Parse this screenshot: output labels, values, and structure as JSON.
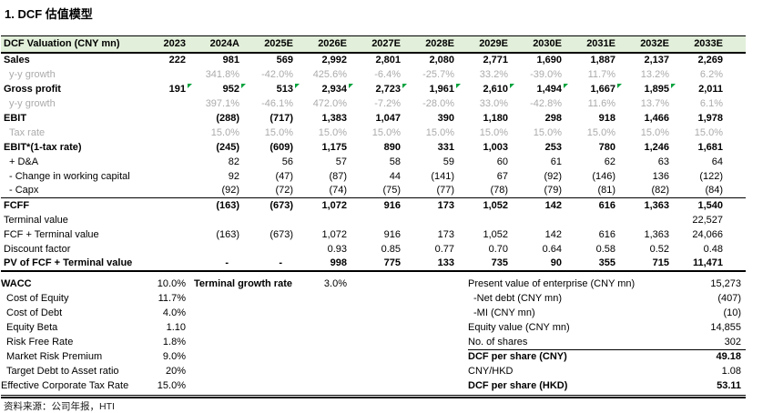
{
  "title": "1. DCF 估值模型",
  "colors": {
    "header_bg": "#E2EFDA",
    "grey_text": "#ABABAB",
    "flag_green": "#00A23C"
  },
  "table": {
    "header": [
      "DCF Valuation (CNY mn)",
      "2023",
      "2024A",
      "2025E",
      "2026E",
      "2027E",
      "2028E",
      "2029E",
      "2030E",
      "2031E",
      "2032E",
      "2033E"
    ],
    "rows": [
      {
        "label": "Sales",
        "cls": "bold",
        "values": [
          "222",
          "981",
          "569",
          "2,992",
          "2,801",
          "2,080",
          "2,771",
          "1,690",
          "1,887",
          "2,137",
          "2,269"
        ]
      },
      {
        "label": "y-y growth",
        "cls": "grey",
        "indent": true,
        "values": [
          "",
          "341.8%",
          "-42.0%",
          "425.6%",
          "-6.4%",
          "-25.7%",
          "33.2%",
          "-39.0%",
          "11.7%",
          "13.2%",
          "6.2%"
        ]
      },
      {
        "label": "Gross profit",
        "cls": "bold",
        "flags": [
          0,
          1,
          2,
          3,
          4,
          5,
          6,
          7,
          8,
          9
        ],
        "values": [
          "191",
          "952",
          "513",
          "2,934",
          "2,723",
          "1,961",
          "2,610",
          "1,494",
          "1,667",
          "1,895",
          "2,011"
        ]
      },
      {
        "label": "y-y growth",
        "cls": "grey",
        "indent": true,
        "values": [
          "",
          "397.1%",
          "-46.1%",
          "472.0%",
          "-7.2%",
          "-28.0%",
          "33.0%",
          "-42.8%",
          "11.6%",
          "13.7%",
          "6.1%"
        ]
      },
      {
        "label": "EBIT",
        "cls": "bold",
        "values": [
          "",
          "(288)",
          "(717)",
          "1,383",
          "1,047",
          "390",
          "1,180",
          "298",
          "918",
          "1,466",
          "1,978"
        ]
      },
      {
        "label": "Tax rate",
        "cls": "grey",
        "indent": true,
        "values": [
          "",
          "15.0%",
          "15.0%",
          "15.0%",
          "15.0%",
          "15.0%",
          "15.0%",
          "15.0%",
          "15.0%",
          "15.0%",
          "15.0%"
        ]
      },
      {
        "label": "EBIT*(1-tax rate)",
        "cls": "bold",
        "values": [
          "",
          "(245)",
          "(609)",
          "1,175",
          "890",
          "331",
          "1,003",
          "253",
          "780",
          "1,246",
          "1,681"
        ]
      },
      {
        "label": "+ D&A",
        "indent": true,
        "values": [
          "",
          "82",
          "56",
          "57",
          "58",
          "59",
          "60",
          "61",
          "62",
          "63",
          "64"
        ]
      },
      {
        "label": "- Change in working capital",
        "indent": true,
        "values": [
          "",
          "92",
          "(47)",
          "(87)",
          "44",
          "(141)",
          "67",
          "(92)",
          "(146)",
          "136",
          "(122)"
        ]
      },
      {
        "label": "- Capx",
        "cls": "rule",
        "indent": true,
        "values": [
          "",
          "(92)",
          "(72)",
          "(74)",
          "(75)",
          "(77)",
          "(78)",
          "(79)",
          "(81)",
          "(82)",
          "(84)"
        ]
      },
      {
        "label": "FCFF",
        "cls": "bold",
        "values": [
          "",
          "(163)",
          "(673)",
          "1,072",
          "916",
          "173",
          "1,052",
          "142",
          "616",
          "1,363",
          "1,540"
        ]
      },
      {
        "label": "Terminal value",
        "values": [
          "",
          "",
          "",
          "",
          "",
          "",
          "",
          "",
          "",
          "",
          "22,527"
        ]
      },
      {
        "label": "FCF + Terminal value",
        "values": [
          "",
          "(163)",
          "(673)",
          "1,072",
          "916",
          "173",
          "1,052",
          "142",
          "616",
          "1,363",
          "24,066"
        ]
      },
      {
        "label": "Discount factor",
        "values": [
          "",
          "",
          "",
          "0.93",
          "0.85",
          "0.77",
          "0.70",
          "0.64",
          "0.58",
          "0.52",
          "0.48"
        ]
      },
      {
        "label": "PV of FCF + Terminal value",
        "cls": "bold thick",
        "values": [
          "",
          "-",
          "-",
          "998",
          "775",
          "133",
          "735",
          "90",
          "355",
          "715",
          "11,471"
        ]
      }
    ]
  },
  "assumptions": [
    {
      "left_label": "WACC",
      "left_value": "10.0%",
      "left_bold": true,
      "mid_label": "Terminal growth rate",
      "mid_value": "3.0%",
      "right_label": "Present value of enterprise (CNY mn)",
      "right_value": "15,273"
    },
    {
      "left_label": "Cost of Equity",
      "left_value": "11.7%",
      "left_indent": true,
      "right_label": "-Net debt (CNY mn)",
      "right_value": "(407)",
      "right_indent": true
    },
    {
      "left_label": "Cost of Debt",
      "left_value": "4.0%",
      "left_indent": true,
      "right_label": "-MI (CNY mn)",
      "right_value": "(10)",
      "right_indent": true
    },
    {
      "left_label": "Equity Beta",
      "left_value": "1.10",
      "left_indent": true,
      "right_label": "Equity value (CNY mn)",
      "right_value": "14,855"
    },
    {
      "left_label": "Risk Free Rate",
      "left_value": "1.8%",
      "left_indent": true,
      "right_label": "No. of shares",
      "right_value": "302",
      "right_underline": true
    },
    {
      "left_label": "Market Risk Premium",
      "left_value": "9.0%",
      "left_indent": true,
      "right_label": "DCF per share (CNY)",
      "right_value": "49.18",
      "right_bold": true
    },
    {
      "left_label": "Target Debt to Asset ratio",
      "left_value": "20%",
      "left_indent": true,
      "right_label": "CNY/HKD",
      "right_value": "1.08"
    },
    {
      "left_label": "Effective Corporate Tax Rate",
      "left_value": "15.0%",
      "right_label": "DCF per share (HKD)",
      "right_value": "53.11",
      "right_bold": true
    }
  ],
  "footer": "资料来源：公司年报，HTI"
}
